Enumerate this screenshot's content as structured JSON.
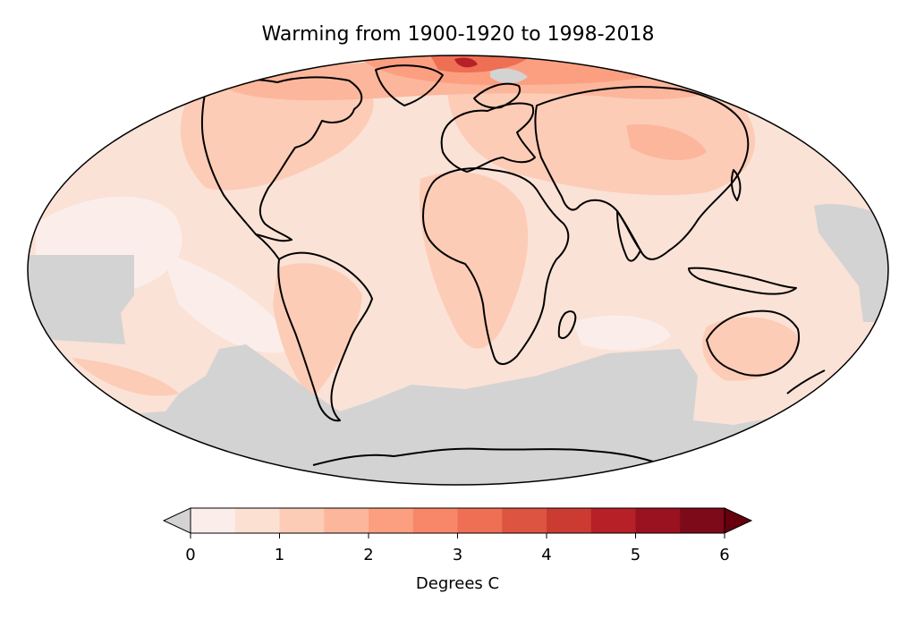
{
  "title": "Warming from 1900-1920 to 1998-2018",
  "map": {
    "projection": "mollweide",
    "no_data_color": "#d3d3d3",
    "ocean_base_color": "#fbe2d6",
    "coastline_color": "#000000"
  },
  "colorbar": {
    "label": "Degrees C",
    "min": 0,
    "max": 6,
    "step": 0.5,
    "ticks": [
      0,
      1,
      2,
      3,
      4,
      5,
      6
    ],
    "tick_labels": [
      "0",
      "1",
      "2",
      "3",
      "4",
      "5",
      "6"
    ],
    "under_color": "#d3d3d3",
    "over_color": "#67000d",
    "colors": [
      "#fbeeea",
      "#fce0d2",
      "#fcccb7",
      "#fcb69b",
      "#fc9f80",
      "#f8876a",
      "#ee6f54",
      "#dd5541",
      "#cb3b32",
      "#b72027",
      "#9a1120",
      "#7c0a18"
    ]
  }
}
